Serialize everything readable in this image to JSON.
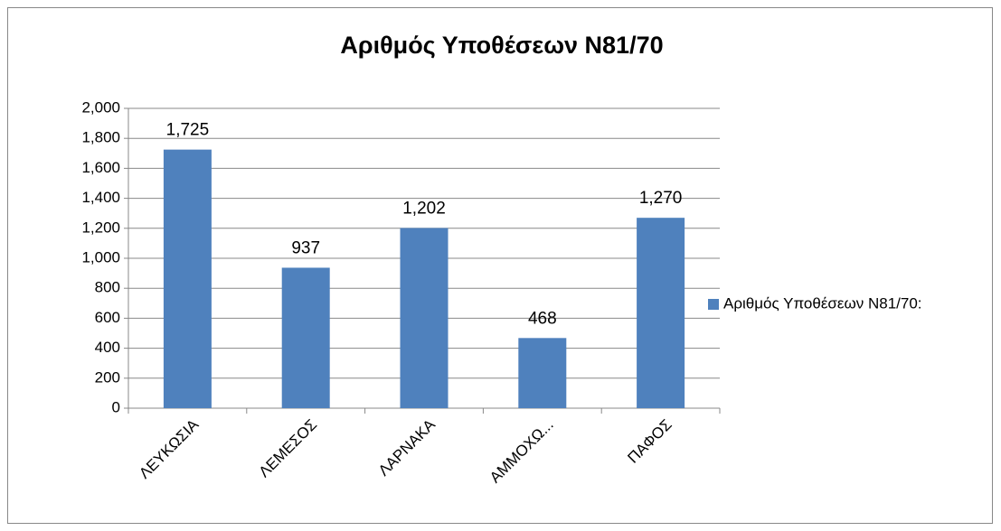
{
  "chart_data": {
    "type": "bar",
    "title": "Αριθμός Υποθέσεων Ν81/70",
    "categories": [
      "ΛΕΥΚΩΣΙΑ",
      "ΛΕΜΕΣΟΣ",
      "ΛΑΡΝΑΚΑ",
      "ΑΜΜΟΧΩ...",
      "ΠΑΦΟΣ"
    ],
    "series": [
      {
        "name": "Αριθμός Υποθέσεων Ν81/70:",
        "color": "#4f81bd",
        "values": [
          1725,
          937,
          1202,
          468,
          1270
        ],
        "value_labels": [
          "1,725",
          "937",
          "1,202",
          "468",
          "1,270"
        ]
      }
    ],
    "ylim": [
      0,
      2000
    ],
    "yticks": [
      0,
      200,
      400,
      600,
      800,
      {
        "value": 1000,
        "label": "1,000"
      },
      {
        "value": 1200,
        "label": "1,200"
      },
      {
        "value": 1400,
        "label": "1,400"
      },
      {
        "value": 1600,
        "label": "1,600"
      },
      {
        "value": 1800,
        "label": "1,800"
      },
      {
        "value": 2000,
        "label": "2,000"
      }
    ],
    "grid": true,
    "legend": "right"
  }
}
